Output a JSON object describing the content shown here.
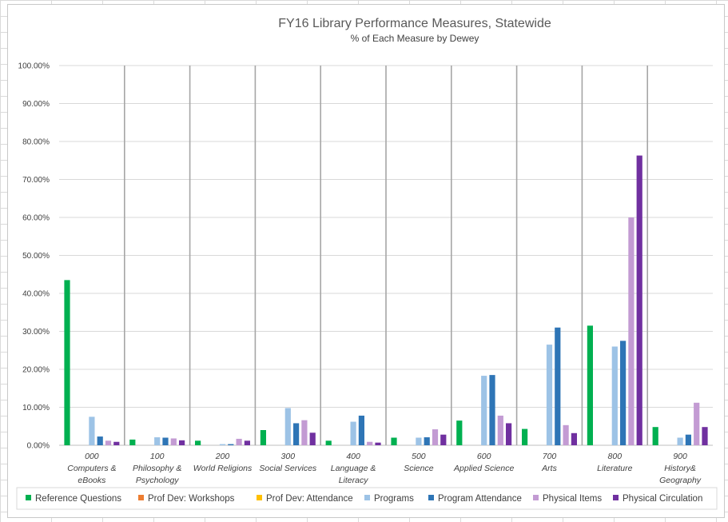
{
  "chart_data": {
    "type": "bar",
    "title": "FY16 Library Performance Measures, Statewide",
    "subtitle": "% of Each Measure by Dewey",
    "xlabel": "",
    "ylabel": "",
    "ylim": [
      0,
      100
    ],
    "yticks": [
      "0.00%",
      "10.00%",
      "20.00%",
      "30.00%",
      "40.00%",
      "50.00%",
      "60.00%",
      "70.00%",
      "80.00%",
      "90.00%",
      "100.00%"
    ],
    "categories": [
      [
        "000",
        "Computers &",
        "eBooks"
      ],
      [
        "100",
        "Philosophy &",
        "Psychology"
      ],
      [
        "200",
        "World Religions"
      ],
      [
        "300",
        "Social Services"
      ],
      [
        "400",
        "Language &",
        "Literacy"
      ],
      [
        "500",
        "Science"
      ],
      [
        "600",
        "Applied Science"
      ],
      [
        "700",
        "Arts"
      ],
      [
        "800",
        "Literature"
      ],
      [
        "900",
        "History&",
        "Geography"
      ]
    ],
    "legend_position": "bottom",
    "grid": true,
    "series": [
      {
        "name": "Reference Questions",
        "color": "#00b050",
        "values": [
          43.5,
          1.5,
          1.2,
          4.0,
          1.2,
          2.0,
          6.5,
          4.3,
          31.5,
          4.8
        ]
      },
      {
        "name": "Prof Dev: Workshops",
        "color": "#ed7d31",
        "values": [
          0,
          0,
          0,
          0,
          0,
          0,
          0,
          0,
          0,
          0
        ]
      },
      {
        "name": "Prof Dev: Attendance",
        "color": "#ffc000",
        "values": [
          0,
          0,
          0,
          0,
          0,
          0,
          0,
          0,
          0,
          0
        ]
      },
      {
        "name": "Programs",
        "color": "#9dc3e6",
        "values": [
          7.5,
          2.1,
          0.3,
          9.8,
          6.2,
          2.0,
          18.3,
          26.5,
          26.0,
          2.0
        ]
      },
      {
        "name": "Program Attendance",
        "color": "#2e75b6",
        "values": [
          2.3,
          2.0,
          0.3,
          5.8,
          7.8,
          2.1,
          18.5,
          31.0,
          27.5,
          2.8
        ]
      },
      {
        "name": "Physical Items",
        "color": "#c39bd3",
        "values": [
          1.2,
          1.8,
          1.7,
          6.6,
          0.9,
          4.2,
          7.8,
          5.3,
          60.0,
          11.2
        ]
      },
      {
        "name": "Physical Circulation",
        "color": "#7030a0",
        "values": [
          0.9,
          1.3,
          1.2,
          3.3,
          0.7,
          2.8,
          5.8,
          3.2,
          76.3,
          4.8
        ]
      }
    ]
  }
}
